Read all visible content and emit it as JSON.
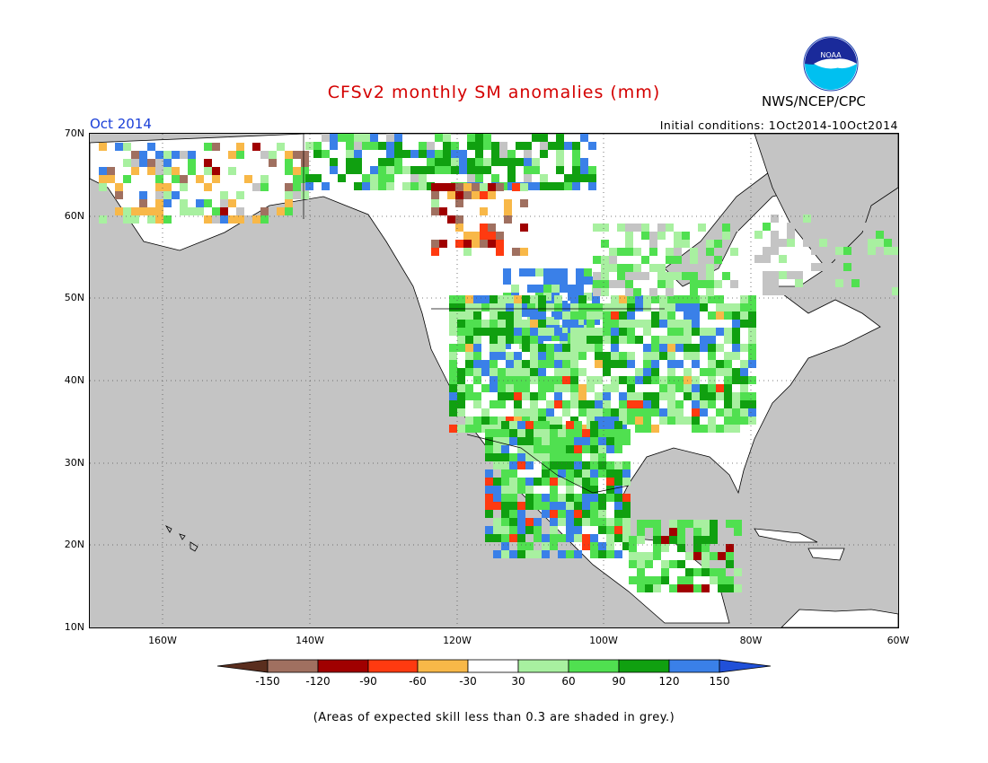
{
  "header": {
    "title": "CFSv2 monthly SM anomalies (mm)",
    "organization": "NWS/NCEP/CPC",
    "logo_text": "NOAA",
    "period": "Oct 2014",
    "initial_conditions": "Initial conditions: 1Oct2014-10Oct2014"
  },
  "map": {
    "lat_labels": [
      "70N",
      "60N",
      "50N",
      "40N",
      "30N",
      "20N",
      "10N"
    ],
    "lon_labels": [
      "160W",
      "140W",
      "120W",
      "100W",
      "80W",
      "60W"
    ],
    "lat_range": [
      10,
      70
    ],
    "lon_range": [
      -171,
      -60
    ],
    "no_skill_color": "#c4c4c4",
    "land_neutral_color": "#ffffff"
  },
  "colorbar": {
    "labels": [
      "-150",
      "-120",
      "-90",
      "-60",
      "-30",
      "30",
      "60",
      "90",
      "120",
      "150"
    ],
    "colors": [
      "#5a2e1e",
      "#a07060",
      "#a00000",
      "#ff3a10",
      "#f8b848",
      "#ffffff",
      "#a8f0a0",
      "#50e050",
      "#10a010",
      "#3a80e8",
      "#2050d8"
    ]
  },
  "footnote": "(Areas of expected skill less than 0.3 are shaded in grey.)"
}
